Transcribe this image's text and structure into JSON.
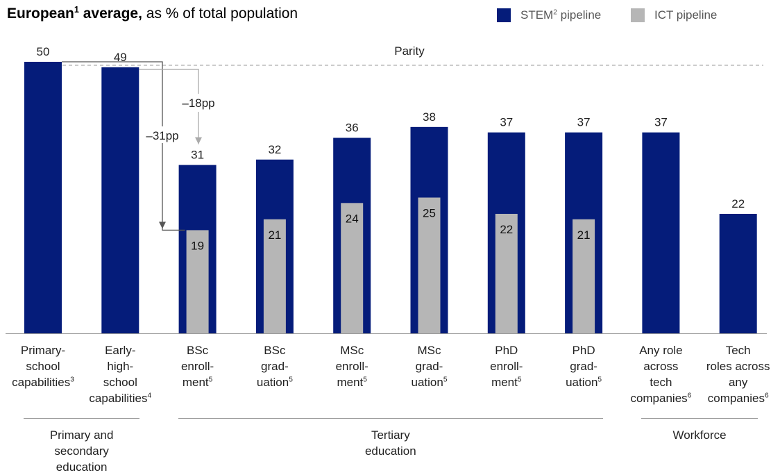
{
  "title": {
    "bold": "European",
    "footnote": "1",
    "bold_rest": " average,",
    "rest": " as % of total population"
  },
  "legend": [
    {
      "label": "STEM",
      "footnote": "2",
      "suffix": " pipeline",
      "color": "#051C7A"
    },
    {
      "label": "ICT",
      "footnote": "",
      "suffix": " pipeline",
      "color": "#B6B6B6"
    }
  ],
  "chart_data": {
    "type": "bar",
    "categories": [
      {
        "lines": [
          "Primary-",
          "school",
          "capabilities"
        ],
        "footnote": "3"
      },
      {
        "lines": [
          "Early-",
          "high-",
          "school",
          "capabilities"
        ],
        "footnote": "4"
      },
      {
        "lines": [
          "BSc",
          "enroll-",
          "ment"
        ],
        "footnote": "5"
      },
      {
        "lines": [
          "BSc",
          "grad-",
          "uation"
        ],
        "footnote": "5"
      },
      {
        "lines": [
          "MSc",
          "enroll-",
          "ment"
        ],
        "footnote": "5"
      },
      {
        "lines": [
          "MSc",
          "grad-",
          "uation"
        ],
        "footnote": "5"
      },
      {
        "lines": [
          "PhD",
          "enroll-",
          "ment"
        ],
        "footnote": "5"
      },
      {
        "lines": [
          "PhD",
          "grad-",
          "uation"
        ],
        "footnote": "5"
      },
      {
        "lines": [
          "Any role",
          "across",
          "tech",
          "companies"
        ],
        "footnote": "6"
      },
      {
        "lines": [
          "Tech",
          "roles across",
          "any",
          "companies"
        ],
        "footnote": "6"
      }
    ],
    "series": [
      {
        "name": "STEM pipeline",
        "color": "#051C7A",
        "values": [
          50,
          49,
          31,
          32,
          36,
          38,
          37,
          37,
          37,
          22
        ]
      },
      {
        "name": "ICT pipeline",
        "color": "#B6B6B6",
        "values": [
          null,
          null,
          19,
          21,
          24,
          25,
          22,
          21,
          null,
          null
        ]
      }
    ],
    "ylim": [
      0,
      50
    ],
    "parity": {
      "value": 50,
      "label": "Parity"
    },
    "annotations": [
      {
        "label": "–31pp",
        "from_category": 0,
        "to_category": 2,
        "from_value": 50,
        "to_value": 19
      },
      {
        "label": "–18pp",
        "from_category": 1,
        "to_category": 2,
        "from_value": 49,
        "to_value": 31
      }
    ],
    "groups": [
      {
        "label": "Primary and secondary education",
        "lines": [
          "Primary and",
          "secondary",
          "education"
        ],
        "start": 0,
        "end": 1
      },
      {
        "label": "Tertiary education",
        "lines": [
          "Tertiary",
          "education"
        ],
        "start": 2,
        "end": 7
      },
      {
        "label": "Workforce",
        "lines": [
          "Workforce"
        ],
        "start": 8,
        "end": 9
      }
    ]
  }
}
